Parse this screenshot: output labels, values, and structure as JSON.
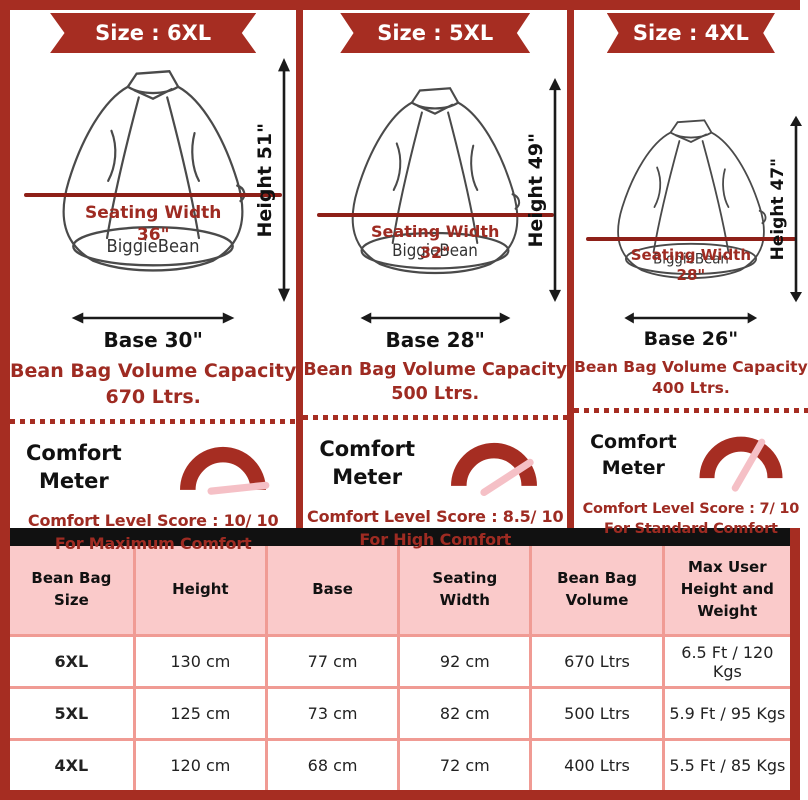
{
  "brand": "BiggieBean",
  "colors": {
    "accent": "#A62D22",
    "red_text": "#9E2B22",
    "seat_line": "#8E2018",
    "needle_pink": "#F5C0C6",
    "header_pink": "#FACACA",
    "table_border": "#F09B94",
    "band_black": "#111111"
  },
  "columns": [
    {
      "size_label": "Size : 6XL",
      "height_label": "Height 51\"",
      "seating_width_line1": "Seating Width",
      "seating_width_line2": "36\"",
      "brand_label": "BiggieBean",
      "base_label": "Base 30\"",
      "volume_line1": "Bean Bag Volume Capacity",
      "volume_line2": "670 Ltrs.",
      "comfort_meter_line1": "Comfort",
      "comfort_meter_line2": "Meter",
      "score_value": 10,
      "score_line1": "Comfort Level Score : 10/ 10",
      "score_line2": "For Maximum Comfort"
    },
    {
      "size_label": "Size : 5XL",
      "height_label": "Height 49\"",
      "seating_width_line1": "Seating Width",
      "seating_width_line2": "32\"",
      "brand_label": "BiggieBean",
      "base_label": "Base 28\"",
      "volume_line1": "Bean Bag Volume Capacity",
      "volume_line2": "500 Ltrs.",
      "comfort_meter_line1": "Comfort",
      "comfort_meter_line2": "Meter",
      "score_value": 8.5,
      "score_line1": "Comfort Level Score : 8.5/ 10",
      "score_line2": "For High Comfort"
    },
    {
      "size_label": "Size : 4XL",
      "height_label": "Height 47\"",
      "seating_width_line1": "Seating Width",
      "seating_width_line2": "28\"",
      "brand_label": "BiggieBean",
      "base_label": "Base 26\"",
      "volume_line1": "Bean Bag Volume Capacity",
      "volume_line2": "400 Ltrs.",
      "comfort_meter_line1": "Comfort",
      "comfort_meter_line2": "Meter",
      "score_value": 7,
      "score_line1": "Comfort Level Score : 7/ 10",
      "score_line2": "For Standard Comfort"
    }
  ],
  "table": {
    "headers": [
      "Bean Bag Size",
      "Height",
      "Base",
      "Seating Width",
      "Bean Bag Volume",
      "Max User Height and Weight"
    ],
    "rows": [
      [
        "6XL",
        "130 cm",
        "77 cm",
        "92 cm",
        "670 Ltrs",
        "6.5 Ft / 120 Kgs"
      ],
      [
        "5XL",
        "125 cm",
        "73 cm",
        "82 cm",
        "500 Ltrs",
        "5.9 Ft / 95 Kgs"
      ],
      [
        "4XL",
        "120 cm",
        "68 cm",
        "72 cm",
        "400 Ltrs",
        "5.5 Ft / 85 Kgs"
      ]
    ]
  }
}
